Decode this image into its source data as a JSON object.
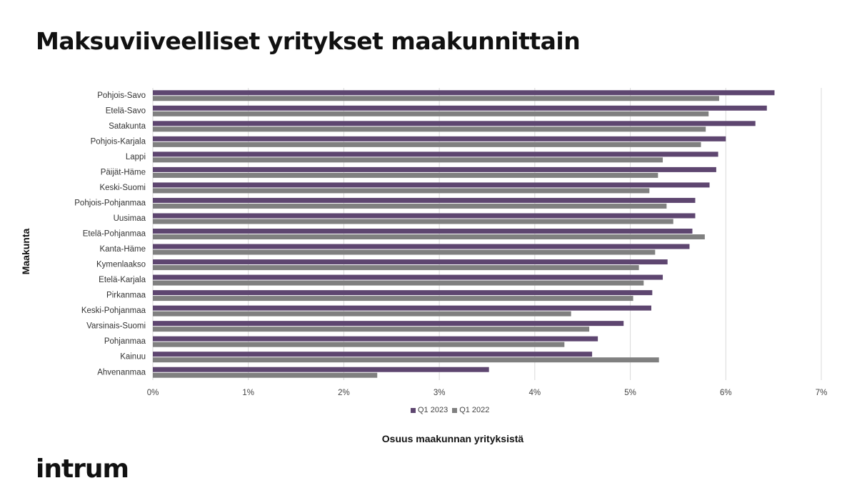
{
  "title": "Maksuviiveelliset yritykset maakunnittain",
  "logo_text": "intrum",
  "colors": {
    "q1_2023": "#5e4670",
    "q1_2022": "#808080",
    "grid": "#d9d9d9"
  },
  "chart_data": {
    "type": "bar",
    "orientation": "horizontal",
    "xlabel": "Osuus maakunnan yrityksistä",
    "ylabel": "Maakunta",
    "xlim": [
      0,
      7
    ],
    "x_ticks": [
      "0%",
      "1%",
      "2%",
      "3%",
      "4%",
      "5%",
      "6%",
      "7%"
    ],
    "grid": true,
    "legend_position": "bottom",
    "categories": [
      "Pohjois-Savo",
      "Etelä-Savo",
      "Satakunta",
      "Pohjois-Karjala",
      "Lappi",
      "Päijät-Häme",
      "Keski-Suomi",
      "Pohjois-Pohjanmaa",
      "Uusimaa",
      "Etelä-Pohjanmaa",
      "Kanta-Häme",
      "Kymenlaakso",
      "Etelä-Karjala",
      "Pirkanmaa",
      "Keski-Pohjanmaa",
      "Varsinais-Suomi",
      "Pohjanmaa",
      "Kainuu",
      "Ahvenanmaa"
    ],
    "series": [
      {
        "name": "Q1 2023",
        "values": [
          6.51,
          6.43,
          6.31,
          6.0,
          5.92,
          5.9,
          5.83,
          5.68,
          5.68,
          5.65,
          5.62,
          5.39,
          5.34,
          5.23,
          5.22,
          4.93,
          4.66,
          4.6,
          3.52
        ]
      },
      {
        "name": "Q1 2022",
        "values": [
          5.93,
          5.82,
          5.79,
          5.74,
          5.34,
          5.29,
          5.2,
          5.38,
          5.45,
          5.78,
          5.26,
          5.09,
          5.14,
          5.03,
          4.38,
          4.57,
          4.31,
          5.3,
          2.35
        ]
      }
    ]
  }
}
